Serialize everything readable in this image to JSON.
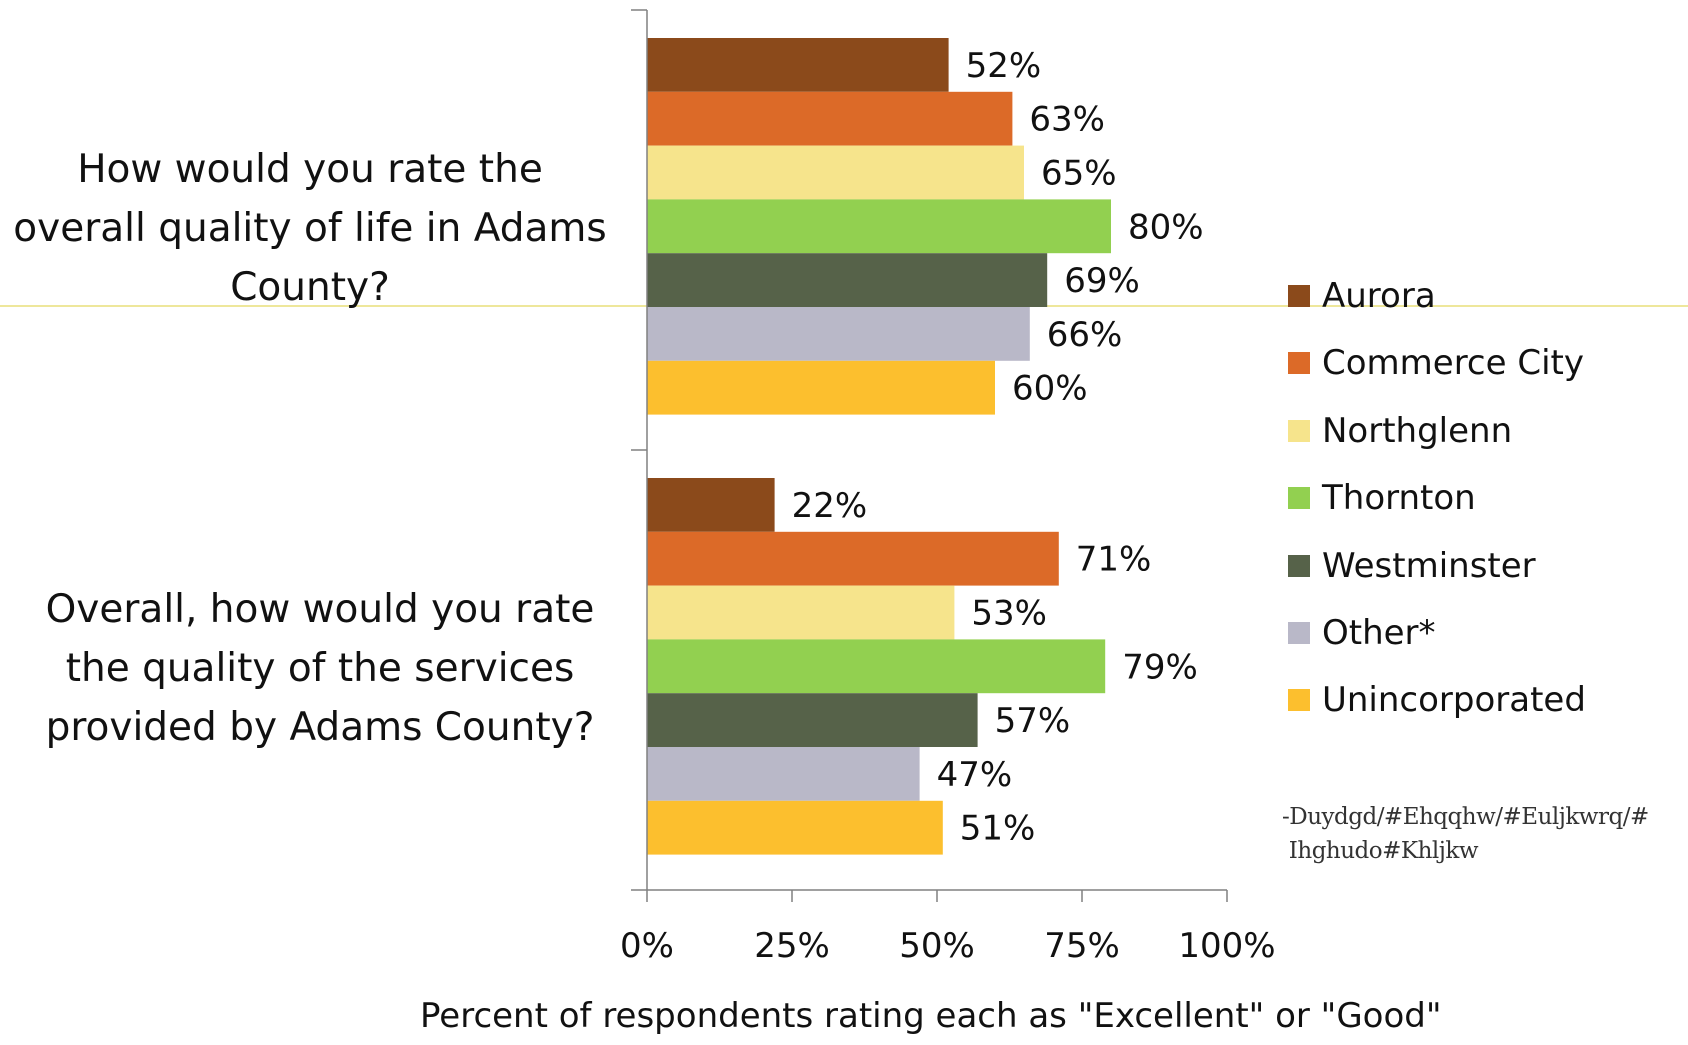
{
  "chart_data": {
    "type": "bar",
    "orientation": "horizontal",
    "categories": [
      "How would you rate the\noverall quality of life in Adams\nCounty?",
      "Overall, how would you rate\nthe quality of the services\nprovided by Adams County?"
    ],
    "series": [
      {
        "name": "Aurora",
        "color": "#8b4a1b",
        "values": [
          52,
          22
        ]
      },
      {
        "name": "Commerce City",
        "color": "#dc6a28",
        "values": [
          63,
          71
        ]
      },
      {
        "name": "Northglenn",
        "color": "#f6e48c",
        "values": [
          65,
          53
        ]
      },
      {
        "name": "Thornton",
        "color": "#92d050",
        "values": [
          80,
          79
        ]
      },
      {
        "name": "Westminster",
        "color": "#566249",
        "values": [
          69,
          57
        ]
      },
      {
        "name": "Other*",
        "color": "#b9b8c8",
        "values": [
          66,
          47
        ]
      },
      {
        "name": "Unincorporated",
        "color": "#fcbf2e",
        "values": [
          60,
          51
        ]
      }
    ],
    "value_suffix": "%",
    "xlim": [
      0,
      100
    ],
    "xticks": [
      "0%",
      "25%",
      "50%",
      "75%",
      "100%"
    ],
    "xlabel": "Percent  of respondents rating each as \"Excellent\" or \"Good\"",
    "grid": false,
    "legend_position": "right"
  },
  "note": "-Duydgd/#Ehqqhw/#Euljkwrq/#\n Ihghudo#Khljkw"
}
